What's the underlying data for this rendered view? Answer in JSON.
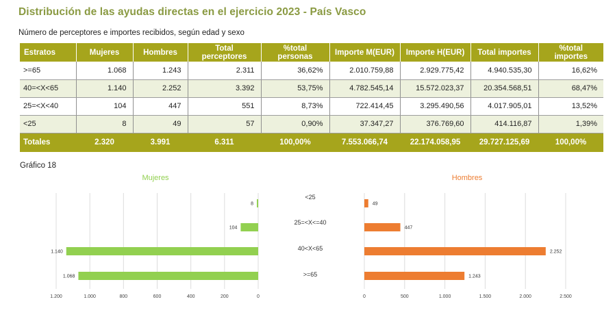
{
  "page": {
    "title": "Distribución de las ayudas directas en el ejercicio 2023 - País Vasco",
    "subtitle": "Número de perceptores e importes recibidos, según edad y sexo",
    "chart_caption": "Gráfico 18"
  },
  "table": {
    "headers": [
      "Estratos",
      "Mujeres",
      "Hombres",
      "Total perceptores",
      "%total personas",
      "Importe M(EUR)",
      "Importe H(EUR)",
      "Total importes",
      "%total importes"
    ],
    "rows": [
      [
        ">=65",
        "1.068",
        "1.243",
        "2.311",
        "36,62%",
        "2.010.759,88",
        "2.929.775,42",
        "4.940.535,30",
        "16,62%"
      ],
      [
        "40=<X<65",
        "1.140",
        "2.252",
        "3.392",
        "53,75%",
        "4.782.545,14",
        "15.572.023,37",
        "20.354.568,51",
        "68,47%"
      ],
      [
        "25=<X<40",
        "104",
        "447",
        "551",
        "8,73%",
        "722.414,45",
        "3.295.490,56",
        "4.017.905,01",
        "13,52%"
      ],
      [
        "<25",
        "8",
        "49",
        "57",
        "0,90%",
        "37.347,27",
        "376.769,60",
        "414.116,87",
        "1,39%"
      ]
    ],
    "totals": [
      "Totales",
      "2.320",
      "3.991",
      "6.311",
      "100,00%",
      "7.553.066,74",
      "22.174.058,95",
      "29.727.125,69",
      "100,00%"
    ]
  },
  "chart_data": {
    "type": "bar",
    "orientation": "horizontal",
    "categories": [
      "<25",
      "25=<X<=40",
      "40<X<65",
      ">=65"
    ],
    "series": [
      {
        "name": "Mujeres",
        "values": [
          8,
          104,
          1140,
          1068
        ],
        "labels": [
          "8",
          "104",
          "1.140",
          "1.068"
        ],
        "color": "#92d050",
        "xlim": [
          0,
          1200
        ],
        "ticks": [
          1200,
          1000,
          800,
          600,
          400,
          200,
          0
        ],
        "tick_labels": [
          "1.200",
          "1.000",
          "800",
          "600",
          "400",
          "200",
          "0"
        ],
        "reversed": true
      },
      {
        "name": "Hombres",
        "values": [
          49,
          447,
          2252,
          1243
        ],
        "labels": [
          "49",
          "447",
          "2.252",
          "1.243"
        ],
        "color": "#ed7d31",
        "xlim": [
          0,
          2500
        ],
        "ticks": [
          0,
          500,
          1000,
          1500,
          2000,
          2500
        ],
        "tick_labels": [
          "0",
          "500",
          "1.000",
          "1.500",
          "2.000",
          "2.500"
        ],
        "reversed": false
      }
    ],
    "title_colors": {
      "Mujeres": "#92d050",
      "Hombres": "#ed7d31"
    }
  }
}
